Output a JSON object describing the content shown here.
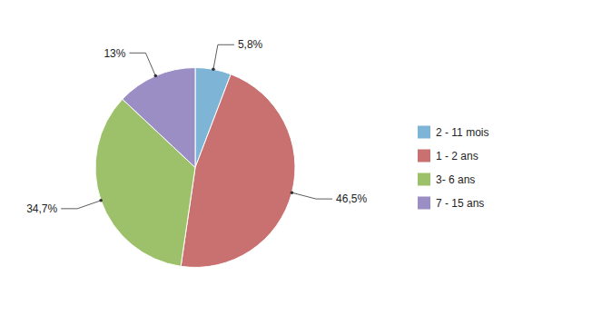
{
  "chart_data": {
    "type": "pie",
    "categories": [
      "2 - 11 mois",
      "1 - 2 ans",
      "3- 6 ans",
      "7 - 15 ans"
    ],
    "values": [
      5.8,
      46.5,
      34.7,
      13.0
    ],
    "value_labels": [
      "5,8%",
      "46,5%",
      "34,7%",
      "13%"
    ],
    "colors": [
      "#7eb5d6",
      "#c97070",
      "#9dc16a",
      "#9b8ec4"
    ],
    "data_labels": true,
    "legend": "right"
  }
}
